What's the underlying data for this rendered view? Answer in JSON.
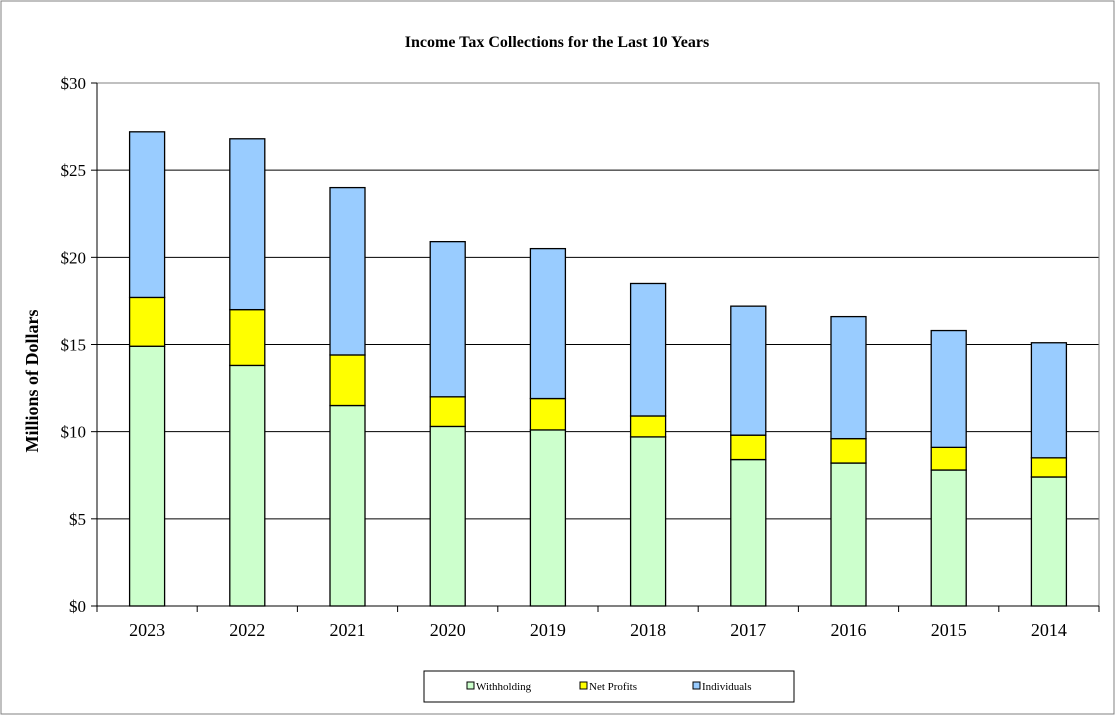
{
  "chart_data": {
    "type": "bar",
    "stacked": true,
    "title": "Income Tax Collections for the Last 10 Years",
    "xlabel": "",
    "ylabel": "Millions of Dollars",
    "ylim": [
      0,
      30
    ],
    "ytick_values": [
      0,
      5,
      10,
      15,
      20,
      25,
      30
    ],
    "ytick_labels": [
      "$0",
      "$5",
      "$10",
      "$15",
      "$20",
      "$25",
      "$30"
    ],
    "grid": true,
    "legend_position": "bottom",
    "categories": [
      "2023",
      "2022",
      "2021",
      "2020",
      "2019",
      "2018",
      "2017",
      "2016",
      "2015",
      "2014"
    ],
    "series": [
      {
        "name": "Withholding",
        "color": "#ccffcc",
        "values": [
          14.9,
          13.8,
          11.5,
          10.3,
          10.1,
          9.7,
          8.4,
          8.2,
          7.8,
          7.4
        ]
      },
      {
        "name": "Net Profits",
        "color": "#ffff00",
        "values": [
          2.8,
          3.2,
          2.9,
          1.7,
          1.8,
          1.2,
          1.4,
          1.4,
          1.3,
          1.1
        ]
      },
      {
        "name": "Individuals",
        "color": "#99ccff",
        "values": [
          9.5,
          9.8,
          9.6,
          8.9,
          8.6,
          7.6,
          7.4,
          7.0,
          6.7,
          6.6
        ]
      }
    ]
  }
}
